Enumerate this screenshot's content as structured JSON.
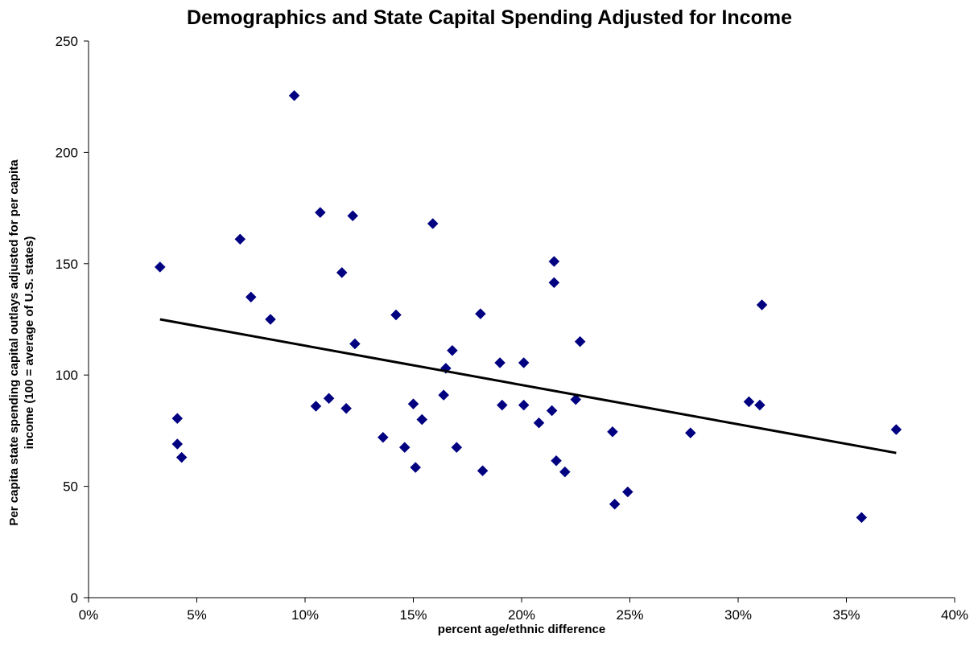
{
  "chart_data": {
    "type": "scatter",
    "title": "Demographics and State Capital Spending Adjusted for Income",
    "xlabel": "percent age/ethnic difference",
    "ylabel_lines": [
      "Per capita state spending capital outlays adjusted for per capita",
      "income (100 = average of U.S. states)"
    ],
    "xlim": [
      0,
      0.4
    ],
    "ylim": [
      0,
      250
    ],
    "x_ticks": [
      0,
      0.05,
      0.1,
      0.15,
      0.2,
      0.25,
      0.3,
      0.35,
      0.4
    ],
    "x_tick_labels": [
      "0%",
      "5%",
      "10%",
      "15%",
      "20%",
      "25%",
      "30%",
      "35%",
      "40%"
    ],
    "y_ticks": [
      0,
      50,
      100,
      150,
      200,
      250
    ],
    "y_tick_labels": [
      "0",
      "50",
      "100",
      "150",
      "200",
      "250"
    ],
    "grid": false,
    "legend": "none",
    "marker": "diamond",
    "marker_color": "#000080",
    "trendline_color": "#000000",
    "series": [
      {
        "points": [
          [
            0.033,
            148.5
          ],
          [
            0.041,
            80.5
          ],
          [
            0.041,
            69
          ],
          [
            0.043,
            63
          ],
          [
            0.07,
            161
          ],
          [
            0.075,
            135
          ],
          [
            0.084,
            125
          ],
          [
            0.095,
            225.5
          ],
          [
            0.105,
            86
          ],
          [
            0.107,
            173
          ],
          [
            0.111,
            89.5
          ],
          [
            0.117,
            146
          ],
          [
            0.119,
            85
          ],
          [
            0.122,
            171.5
          ],
          [
            0.123,
            114
          ],
          [
            0.136,
            72
          ],
          [
            0.142,
            127
          ],
          [
            0.146,
            67.5
          ],
          [
            0.15,
            87
          ],
          [
            0.151,
            58.5
          ],
          [
            0.154,
            80
          ],
          [
            0.159,
            168
          ],
          [
            0.164,
            91
          ],
          [
            0.165,
            103
          ],
          [
            0.168,
            111
          ],
          [
            0.17,
            67.5
          ],
          [
            0.181,
            127.5
          ],
          [
            0.182,
            57
          ],
          [
            0.19,
            105.5
          ],
          [
            0.191,
            86.5
          ],
          [
            0.201,
            105.5
          ],
          [
            0.201,
            86.5
          ],
          [
            0.208,
            78.5
          ],
          [
            0.214,
            84
          ],
          [
            0.215,
            151
          ],
          [
            0.215,
            141.5
          ],
          [
            0.216,
            61.5
          ],
          [
            0.22,
            56.5
          ],
          [
            0.225,
            89
          ],
          [
            0.227,
            115
          ],
          [
            0.242,
            74.5
          ],
          [
            0.243,
            42
          ],
          [
            0.249,
            47.5
          ],
          [
            0.278,
            74
          ],
          [
            0.305,
            88
          ],
          [
            0.31,
            86.5
          ],
          [
            0.311,
            131.5
          ],
          [
            0.357,
            36
          ],
          [
            0.373,
            75.5
          ]
        ]
      }
    ],
    "trendline": {
      "x": [
        0.033,
        0.373
      ],
      "y": [
        125,
        65
      ]
    }
  }
}
